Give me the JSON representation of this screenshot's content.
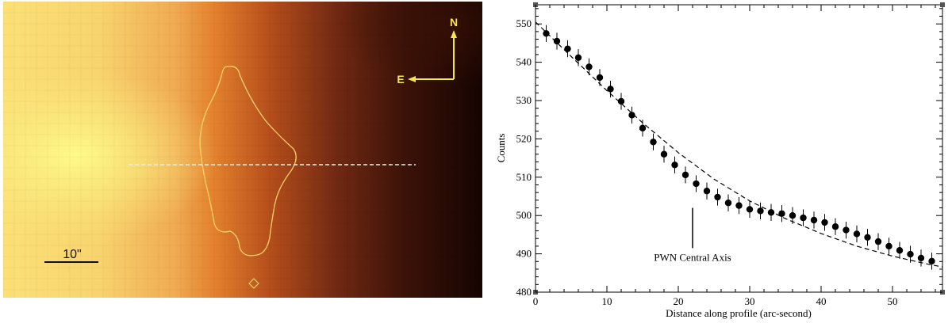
{
  "image_panel": {
    "compass": {
      "north": "N",
      "east": "E"
    },
    "scale_bar_label": "10\""
  },
  "chart_data": {
    "type": "scatter",
    "title": "",
    "xlabel": "Distance along profile (arc-second)",
    "ylabel": "Counts",
    "xlim": [
      0,
      57
    ],
    "ylim": [
      480,
      555
    ],
    "x_ticks": [
      0,
      10,
      20,
      30,
      40,
      50
    ],
    "y_ticks": [
      480,
      490,
      500,
      510,
      520,
      530,
      540,
      550
    ],
    "series": [
      {
        "style": "points-with-errorbars",
        "color": "#000000",
        "x": [
          1.5,
          3.0,
          4.5,
          6.0,
          7.5,
          9.0,
          10.5,
          12.0,
          13.5,
          15.0,
          16.5,
          18.0,
          19.5,
          21.0,
          22.5,
          24.0,
          25.5,
          27.0,
          28.5,
          30.0,
          31.5,
          33.0,
          34.5,
          36.0,
          37.5,
          39.0,
          40.5,
          42.0,
          43.5,
          45.0,
          46.5,
          48.0,
          49.5,
          51.0,
          52.5,
          54.0,
          55.5
        ],
        "y": [
          547.5,
          545.5,
          543.5,
          541.2,
          538.8,
          536.0,
          533.0,
          529.8,
          526.2,
          522.8,
          519.2,
          516.0,
          513.2,
          510.6,
          508.3,
          506.4,
          504.8,
          503.3,
          502.6,
          501.6,
          501.2,
          500.8,
          500.5,
          500.0,
          499.4,
          498.8,
          498.2,
          497.1,
          496.2,
          495.2,
          494.3,
          493.2,
          492.0,
          490.9,
          489.9,
          488.9,
          488.1
        ],
        "yerr": 2.2
      },
      {
        "style": "dashed-line",
        "color": "#000000",
        "x": [
          0,
          5,
          10,
          15,
          20,
          25,
          30,
          35,
          40,
          45,
          50,
          55,
          57
        ],
        "y": [
          550.5,
          541.5,
          532.6,
          524.2,
          516.4,
          509.5,
          503.8,
          499.2,
          495.3,
          492.0,
          489.4,
          487.3,
          486.6
        ]
      }
    ],
    "annotations": [
      {
        "text": "PWN Central Axis",
        "x": 22,
        "y_line": [
          491.5,
          502
        ]
      }
    ]
  }
}
